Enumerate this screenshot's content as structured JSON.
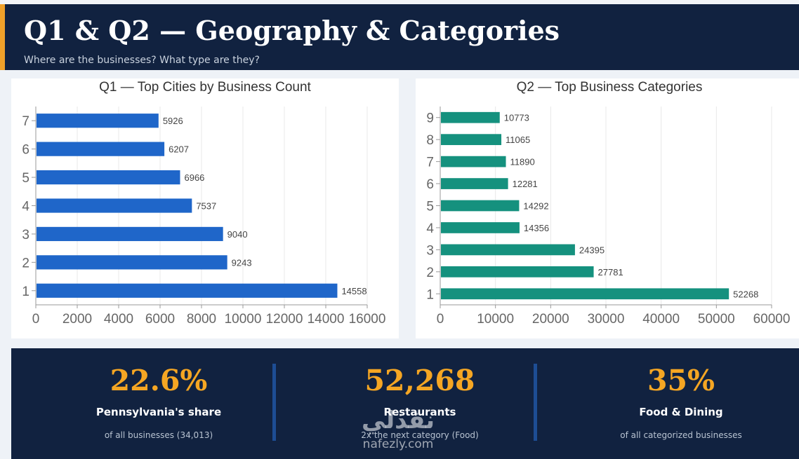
{
  "header": {
    "title": "Q1 & Q2 — Geography & Categories",
    "subtitle": "Where are the businesses? What type are they?"
  },
  "colors": {
    "header_bg": "#112240",
    "accent": "#f0a12a",
    "q1_bar": "#1f66c9",
    "q2_bar": "#15917e",
    "kpi_value": "#f5a623"
  },
  "chart_data": [
    {
      "type": "bar",
      "orientation": "horizontal",
      "title": "Q1 — Top Cities by Business Count",
      "categories": [
        "1",
        "2",
        "3",
        "4",
        "5",
        "6",
        "7"
      ],
      "values": [
        14558,
        9243,
        9040,
        7537,
        6966,
        6207,
        5926
      ],
      "xlim": [
        0,
        16000
      ],
      "xticks": [
        0,
        2000,
        4000,
        6000,
        8000,
        10000,
        12000,
        14000,
        16000
      ],
      "grid": true,
      "data_labels": true,
      "color": "#1f66c9"
    },
    {
      "type": "bar",
      "orientation": "horizontal",
      "title": "Q2 — Top Business Categories",
      "categories": [
        "1",
        "2",
        "3",
        "4",
        "5",
        "6",
        "7",
        "8",
        "9"
      ],
      "values": [
        52268,
        27781,
        24395,
        14356,
        14292,
        12281,
        11890,
        11065,
        10773
      ],
      "xlim": [
        0,
        60000
      ],
      "xticks": [
        0,
        10000,
        20000,
        30000,
        40000,
        50000,
        60000
      ],
      "grid": true,
      "data_labels": true,
      "color": "#15917e"
    }
  ],
  "kpis": [
    {
      "value": "22.6%",
      "label": "Pennsylvania's share",
      "desc": "of all businesses (34,013)"
    },
    {
      "value": "52,268",
      "label": "Restaurants",
      "desc": "2x the next category (Food)"
    },
    {
      "value": "35%",
      "label": "Food & Dining",
      "desc": "of all categorized businesses"
    }
  ],
  "watermark": {
    "arabic": "نفذلي",
    "latin": "nafezly.com"
  }
}
